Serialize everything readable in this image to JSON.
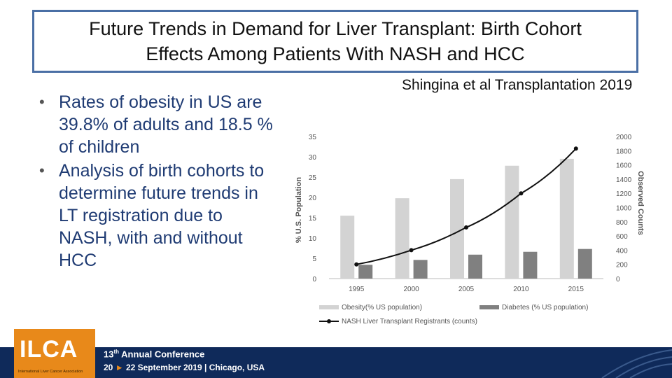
{
  "slide": {
    "title_line1": "Future Trends in Demand for Liver Transplant: Birth Cohort",
    "title_line2": "Effects Among Patients With NASH and HCC",
    "citation": "Shingina et al Transplantation 2019",
    "bullets": [
      "Rates of obesity in US are 39.8% of adults and 18.5 % of children",
      "Analysis of birth cohorts to determine future trends in LT registration due to NASH, with and without HCC"
    ]
  },
  "footer": {
    "logo": "ILCA",
    "logo_sub": "International Liver Cancer Association",
    "conf_th": "th",
    "conf_line1_num": "13",
    "conf_line1_rest": "Annual Conference",
    "conf_date_start": "20",
    "conf_date_arrow": "►",
    "conf_date_rest": "22 September 2019",
    "conf_sep": "|",
    "conf_city": "Chicago, USA",
    "colors": {
      "navy": "#0f2a5a",
      "orange": "#e8891a"
    }
  },
  "chart_data": {
    "type": "bar",
    "categories": [
      "1995",
      "2000",
      "2005",
      "2010",
      "2015"
    ],
    "series": [
      {
        "name": "Obesity(% US population)",
        "type": "bar",
        "axis": "left",
        "color": "#d3d3d3",
        "values": [
          15.5,
          19.8,
          24.5,
          27.8,
          29.5
        ]
      },
      {
        "name": "Diabetes (% US population)",
        "type": "bar",
        "axis": "left",
        "color": "#808080",
        "values": [
          3.4,
          4.6,
          5.9,
          6.6,
          7.3
        ]
      },
      {
        "name": "NASH Liver Transplant Registrants (counts)",
        "type": "line",
        "axis": "right",
        "color": "#111111",
        "values": [
          200,
          400,
          720,
          1200,
          1830
        ]
      }
    ],
    "ylabel": "% U.S. Population",
    "y2label": "Observed Counts",
    "ylim": [
      0,
      35
    ],
    "y2lim": [
      0,
      2000
    ],
    "yticks": [
      "0",
      "5",
      "10",
      "15",
      "20",
      "25",
      "30",
      "35"
    ],
    "y2ticks": [
      "0",
      "200",
      "400",
      "600",
      "800",
      "1000",
      "1200",
      "1400",
      "1600",
      "1800",
      "2000"
    ]
  }
}
